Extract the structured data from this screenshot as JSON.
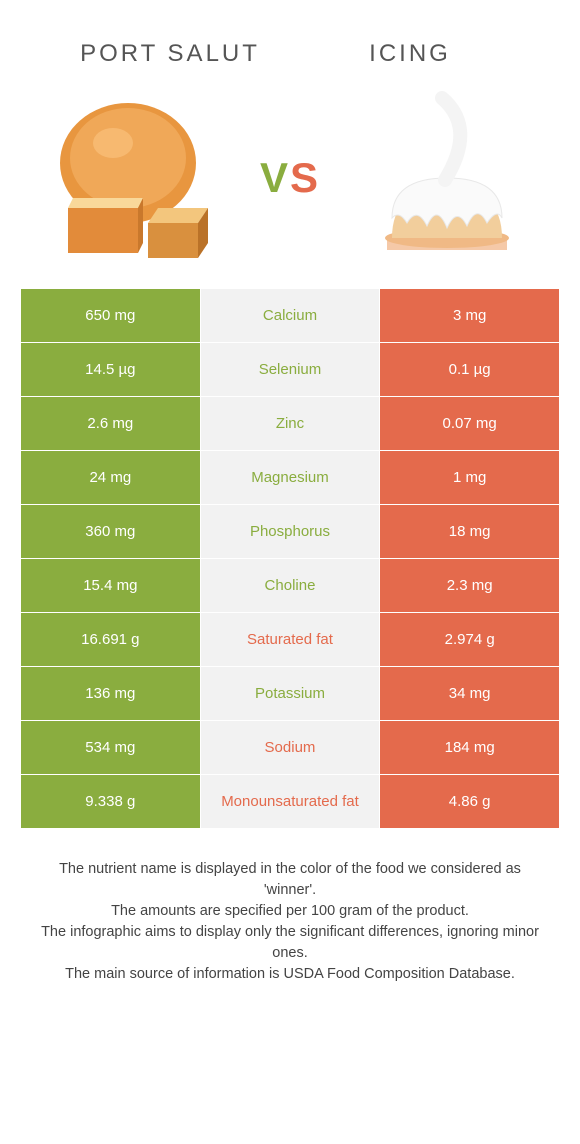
{
  "food_a": {
    "name": "Port Salut",
    "color": "#8aad3f"
  },
  "food_b": {
    "name": "Icing",
    "color": "#e46a4c"
  },
  "vs": {
    "v": "V",
    "s": "S"
  },
  "rows": [
    {
      "a": "650 mg",
      "nutrient": "Calcium",
      "b": "3 mg",
      "winner": "a"
    },
    {
      "a": "14.5 µg",
      "nutrient": "Selenium",
      "b": "0.1 µg",
      "winner": "a"
    },
    {
      "a": "2.6 mg",
      "nutrient": "Zinc",
      "b": "0.07 mg",
      "winner": "a"
    },
    {
      "a": "24 mg",
      "nutrient": "Magnesium",
      "b": "1 mg",
      "winner": "a"
    },
    {
      "a": "360 mg",
      "nutrient": "Phosphorus",
      "b": "18 mg",
      "winner": "a"
    },
    {
      "a": "15.4 mg",
      "nutrient": "Choline",
      "b": "2.3 mg",
      "winner": "a"
    },
    {
      "a": "16.691 g",
      "nutrient": "Saturated fat",
      "b": "2.974 g",
      "winner": "b"
    },
    {
      "a": "136 mg",
      "nutrient": "Potassium",
      "b": "34 mg",
      "winner": "a"
    },
    {
      "a": "534 mg",
      "nutrient": "Sodium",
      "b": "184 mg",
      "winner": "b"
    },
    {
      "a": "9.338 g",
      "nutrient": "Monounsaturated fat",
      "b": "4.86 g",
      "winner": "b"
    }
  ],
  "footer": {
    "l1": "The nutrient name is displayed in the color of the food we considered as 'winner'.",
    "l2": "The amounts are specified per 100 gram of the product.",
    "l3": "The infographic aims to display only the significant differences, ignoring minor ones.",
    "l4": "The main source of information is USDA Food Composition Database."
  },
  "style": {
    "left_bg": "#8aad3f",
    "right_bg": "#e46a4c",
    "mid_bg": "#f2f2f2",
    "title_fontsize": 24,
    "row_fontsize": 15,
    "footer_fontsize": 14.5,
    "background": "#ffffff",
    "nutrient_left_color": "#8aad3f",
    "nutrient_right_color": "#e46a4c"
  }
}
